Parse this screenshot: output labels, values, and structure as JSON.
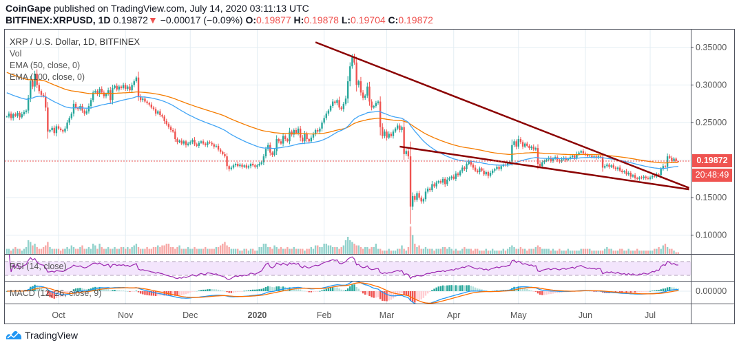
{
  "header": {
    "publisher": "CoinGape",
    "published_text": "published on TradingView.com, July 14, 2020 03:11:13 UTC",
    "symbol": "BITFINEX:XRPUSD, 1D",
    "last": "0.19872",
    "direction_icon": "triangle-down-icon",
    "change": "−0.00017 (−0.09%)",
    "o_label": "O:",
    "o": "0.19877",
    "h_label": "H:",
    "h": "0.19878",
    "l_label": "L:",
    "l": "0.19704",
    "c_label": "C:",
    "c": "0.19872"
  },
  "legend": {
    "title": "XRP / U.S. Dollar, 1D, BITFINEX",
    "vol": "Vol",
    "ema50": "EMA (50, close, 0)",
    "ema100": "EMA (100, close, 0)",
    "rsi": "RSI (14, close)",
    "macd": "MACD (12, 26, close, 9)"
  },
  "price_axis": {
    "ticks": [
      "0.35000",
      "0.30000",
      "0.25000",
      "0.15000",
      "0.10000"
    ],
    "macd_tick": "0.00000",
    "current_price": "0.19872",
    "countdown": "20:48:49"
  },
  "time_axis": {
    "labels": [
      {
        "month": "2019-10",
        "text": "Oct"
      },
      {
        "month": "2019-11",
        "text": "Nov"
      },
      {
        "month": "2019-12",
        "text": "Dec"
      },
      {
        "month": "2020-01",
        "text": "2020"
      },
      {
        "month": "2020-02",
        "text": "Feb"
      },
      {
        "month": "2020-03",
        "text": "Mar"
      },
      {
        "month": "2020-04",
        "text": "Apr"
      },
      {
        "month": "2020-05",
        "text": "May"
      },
      {
        "month": "2020-06",
        "text": "Jun"
      },
      {
        "month": "2020-07",
        "text": "Jul"
      }
    ]
  },
  "footer": {
    "brand": "TradingView",
    "logo_icon": "tradingview-logo-icon"
  },
  "colors": {
    "up": "#26a69a",
    "down": "#ef5350",
    "ema50": "#42a5f5",
    "ema100": "#f57c00",
    "trendline": "#8b0000",
    "rsi": "#9c27b0",
    "rsi_band": "#f3e5fc",
    "macd": "#2196f3",
    "signal": "#ff6d00",
    "grid": "#e3edf3"
  },
  "chart_data": {
    "type": "candlestick",
    "symbol": "XRPUSD",
    "interval": "1D",
    "ylim": [
      0.075,
      0.375
    ],
    "last_candle": {
      "open": 0.19877,
      "high": 0.19878,
      "low": 0.19704,
      "close": 0.19872
    },
    "ema_initial": {
      "ema50": 0.291,
      "ema100": 0.318
    },
    "months": [
      {
        "month": "2019-09",
        "first_day": 7,
        "closes": [
          0.258,
          0.262,
          0.256,
          0.261,
          0.259,
          0.263,
          0.257,
          0.261,
          0.264,
          0.266,
          0.283,
          0.305,
          0.298,
          0.315,
          0.3,
          0.292,
          0.287,
          0.285,
          0.27,
          0.238,
          0.24,
          0.243,
          0.236,
          0.245
        ],
        "volumes": [
          3,
          3,
          2,
          3,
          4,
          3,
          3,
          2,
          3,
          4,
          8,
          7,
          5,
          6,
          4,
          3,
          3,
          4,
          5,
          7,
          4,
          3,
          3,
          3
        ]
      },
      {
        "month": "2019-10",
        "first_day": 1,
        "closes": [
          0.242,
          0.24,
          0.238,
          0.242,
          0.25,
          0.256,
          0.262,
          0.275,
          0.27,
          0.268,
          0.272,
          0.266,
          0.262,
          0.265,
          0.272,
          0.28,
          0.29,
          0.292,
          0.288,
          0.295,
          0.29,
          0.285,
          0.288,
          0.293,
          0.28,
          0.296,
          0.299,
          0.294,
          0.298,
          0.296,
          0.3
        ],
        "volumes": [
          3,
          2,
          3,
          3,
          4,
          3,
          5,
          4,
          3,
          3,
          4,
          5,
          3,
          3,
          4,
          3,
          6,
          5,
          3,
          6,
          4,
          3,
          3,
          4,
          3,
          3,
          4,
          3,
          3,
          4,
          4
        ]
      },
      {
        "month": "2019-11",
        "first_day": 1,
        "closes": [
          0.295,
          0.298,
          0.293,
          0.3,
          0.305,
          0.31,
          0.285,
          0.28,
          0.282,
          0.278,
          0.276,
          0.274,
          0.27,
          0.268,
          0.262,
          0.265,
          0.26,
          0.258,
          0.252,
          0.248,
          0.244,
          0.24,
          0.238,
          0.228,
          0.224,
          0.226,
          0.222,
          0.225,
          0.22,
          0.222
        ],
        "volumes": [
          3,
          4,
          3,
          4,
          5,
          6,
          4,
          3,
          3,
          3,
          4,
          3,
          3,
          4,
          4,
          5,
          4,
          5,
          5,
          6,
          6,
          4,
          4,
          3,
          4,
          5,
          3,
          3,
          3,
          4
        ]
      },
      {
        "month": "2019-12",
        "first_day": 1,
        "closes": [
          0.224,
          0.227,
          0.221,
          0.219,
          0.223,
          0.225,
          0.222,
          0.22,
          0.224,
          0.223,
          0.221,
          0.218,
          0.219,
          0.214,
          0.211,
          0.208,
          0.205,
          0.192,
          0.188,
          0.19,
          0.193,
          0.195,
          0.192,
          0.194,
          0.191,
          0.193,
          0.19,
          0.192,
          0.195,
          0.193,
          0.191
        ],
        "volumes": [
          3,
          3,
          4,
          3,
          3,
          3,
          3,
          4,
          3,
          3,
          3,
          3,
          4,
          4,
          5,
          6,
          7,
          5,
          4,
          3,
          3,
          3,
          3,
          2,
          2,
          3,
          3,
          2,
          3,
          3,
          2
        ]
      },
      {
        "month": "2020-01",
        "first_day": 1,
        "closes": [
          0.193,
          0.195,
          0.197,
          0.205,
          0.215,
          0.22,
          0.21,
          0.207,
          0.212,
          0.228,
          0.225,
          0.222,
          0.232,
          0.228,
          0.225,
          0.238,
          0.234,
          0.24,
          0.236,
          0.242,
          0.23,
          0.225,
          0.235,
          0.228,
          0.225,
          0.23,
          0.235,
          0.24,
          0.238,
          0.242,
          0.25
        ],
        "volumes": [
          2,
          4,
          4,
          6,
          6,
          4,
          4,
          3,
          5,
          4,
          3,
          4,
          3,
          3,
          4,
          3,
          3,
          4,
          3,
          3,
          3,
          3,
          2,
          3,
          3,
          4,
          3,
          5,
          5,
          4,
          4
        ]
      },
      {
        "month": "2020-02",
        "first_day": 1,
        "closes": [
          0.256,
          0.262,
          0.266,
          0.272,
          0.278,
          0.276,
          0.28,
          0.27,
          0.268,
          0.275,
          0.282,
          0.305,
          0.325,
          0.338,
          0.33,
          0.3,
          0.305,
          0.29,
          0.283,
          0.286,
          0.298,
          0.278,
          0.27,
          0.272,
          0.276,
          0.278,
          0.244,
          0.232,
          0.238
        ],
        "volumes": [
          6,
          6,
          5,
          5,
          4,
          4,
          4,
          3,
          4,
          5,
          8,
          10,
          8,
          7,
          6,
          5,
          5,
          4,
          3,
          4,
          4,
          3,
          4,
          4,
          6,
          3,
          3,
          2,
          2
        ]
      },
      {
        "month": "2020-03",
        "first_day": 1,
        "closes": [
          0.23,
          0.235,
          0.232,
          0.238,
          0.242,
          0.246,
          0.24,
          0.244,
          0.208,
          0.212,
          0.205,
          0.138,
          0.152,
          0.147,
          0.156,
          0.15,
          0.145,
          0.148,
          0.158,
          0.162,
          0.16,
          0.168,
          0.165,
          0.17,
          0.172,
          0.17,
          0.175,
          0.168,
          0.174,
          0.176,
          0.178
        ],
        "volumes": [
          2,
          3,
          2,
          2,
          2,
          3,
          3,
          5,
          3,
          2,
          4,
          16,
          11,
          6,
          4,
          5,
          3,
          3,
          4,
          3,
          3,
          3,
          2,
          3,
          3,
          3,
          4,
          4,
          3,
          4,
          3
        ]
      },
      {
        "month": "2020-04",
        "first_day": 1,
        "closes": [
          0.175,
          0.182,
          0.18,
          0.185,
          0.19,
          0.188,
          0.195,
          0.198,
          0.194,
          0.19,
          0.186,
          0.184,
          0.189,
          0.186,
          0.181,
          0.184,
          0.179,
          0.183,
          0.186,
          0.188,
          0.191,
          0.188,
          0.192,
          0.194,
          0.193,
          0.196,
          0.198,
          0.22,
          0.225,
          0.218
        ],
        "volumes": [
          2,
          3,
          2,
          2,
          3,
          4,
          3,
          3,
          3,
          2,
          3,
          3,
          2,
          2,
          2,
          3,
          2,
          2,
          3,
          2,
          2,
          2,
          2,
          3,
          2,
          3,
          4,
          5,
          4,
          3
        ]
      },
      {
        "month": "2020-05",
        "first_day": 1,
        "closes": [
          0.228,
          0.224,
          0.218,
          0.222,
          0.219,
          0.216,
          0.218,
          0.214,
          0.216,
          0.195,
          0.192,
          0.197,
          0.199,
          0.201,
          0.203,
          0.199,
          0.202,
          0.204,
          0.2,
          0.198,
          0.201,
          0.203,
          0.2,
          0.202,
          0.204,
          0.206,
          0.203,
          0.208,
          0.21,
          0.212,
          0.209
        ],
        "volumes": [
          3,
          4,
          3,
          3,
          2,
          3,
          3,
          3,
          4,
          5,
          4,
          3,
          3,
          3,
          3,
          2,
          3,
          2,
          2,
          3,
          2,
          2,
          2,
          3,
          2,
          2,
          2,
          2,
          2,
          3,
          3
        ]
      },
      {
        "month": "2020-06",
        "first_day": 1,
        "closes": [
          0.207,
          0.205,
          0.206,
          0.204,
          0.205,
          0.203,
          0.205,
          0.204,
          0.19,
          0.192,
          0.194,
          0.191,
          0.193,
          0.19,
          0.188,
          0.19,
          0.186,
          0.184,
          0.185,
          0.181,
          0.183,
          0.178,
          0.18,
          0.176,
          0.175,
          0.177,
          0.176,
          0.178,
          0.176,
          0.175
        ],
        "volumes": [
          3,
          3,
          3,
          2,
          2,
          2,
          2,
          2,
          2,
          3,
          4,
          3,
          3,
          2,
          2,
          2,
          3,
          3,
          2,
          2,
          3,
          2,
          2,
          2,
          3,
          2,
          2,
          2,
          2,
          2
        ]
      },
      {
        "month": "2020-07",
        "first_day": 1,
        "closes": [
          0.177,
          0.179,
          0.178,
          0.181,
          0.18,
          0.188,
          0.192,
          0.191,
          0.205,
          0.203,
          0.199,
          0.202,
          0.19889,
          0.19872
        ],
        "volumes": [
          2,
          2,
          3,
          3,
          4,
          3,
          5,
          6,
          4,
          3,
          3,
          2,
          1,
          1
        ]
      }
    ],
    "trendlines": [
      {
        "from": {
          "date": "2020-01-28",
          "price": 0.357
        },
        "to": {
          "date": "2020-07-19",
          "price": 0.163
        }
      },
      {
        "from": {
          "date": "2020-03-07",
          "price": 0.218
        },
        "to": {
          "date": "2020-07-19",
          "price": 0.161
        }
      }
    ],
    "indicators": [
      "Vol",
      "EMA 50",
      "EMA 100",
      "RSI 14",
      "MACD 12 26 9"
    ],
    "rsi_band": [
      30,
      70
    ]
  }
}
